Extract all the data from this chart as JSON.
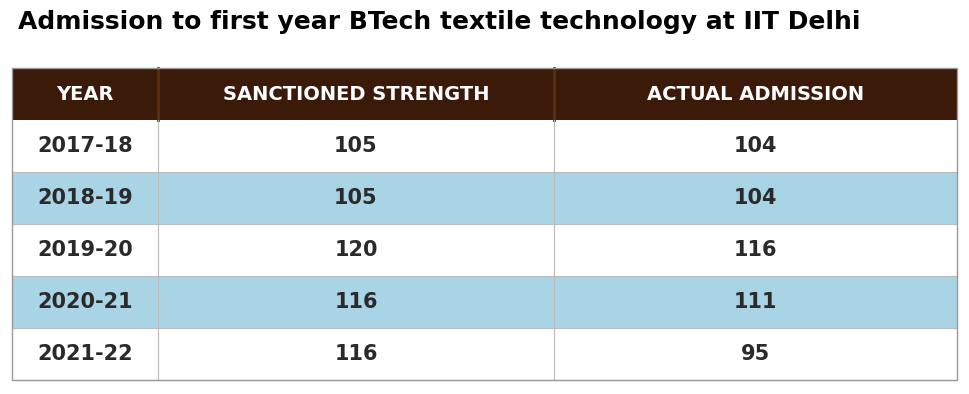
{
  "title": "Admission to first year BTech textile technology at IIT Delhi",
  "title_fontsize": 18,
  "title_fontweight": "bold",
  "header_labels": [
    "YEAR",
    "SANCTIONED STRENGTH",
    "ACTUAL ADMISSION"
  ],
  "header_bg_color": "#3B1A0A",
  "header_text_color": "#FFFFFF",
  "rows": [
    [
      "2017-18",
      "105",
      "104"
    ],
    [
      "2018-19",
      "105",
      "104"
    ],
    [
      "2019-20",
      "120",
      "116"
    ],
    [
      "2020-21",
      "116",
      "111"
    ],
    [
      "2021-22",
      "116",
      "95"
    ]
  ],
  "row_bg_colors": [
    "#FFFFFF",
    "#A8D4E6",
    "#FFFFFF",
    "#A8D4E6",
    "#FFFFFF"
  ],
  "row_text_color": "#2A2A2A",
  "background_color": "#FFFFFF",
  "cell_fontsize": 15,
  "header_fontsize": 14,
  "fig_width": 9.69,
  "fig_height": 3.94,
  "dpi": 100
}
